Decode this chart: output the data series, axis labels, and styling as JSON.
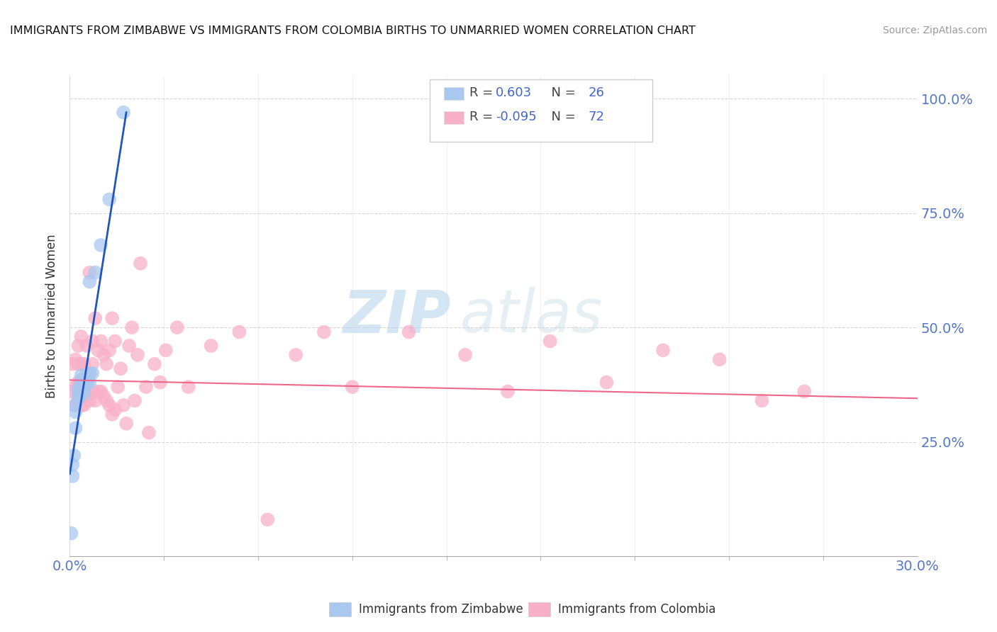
{
  "title": "IMMIGRANTS FROM ZIMBABWE VS IMMIGRANTS FROM COLOMBIA BIRTHS TO UNMARRIED WOMEN CORRELATION CHART",
  "source": "Source: ZipAtlas.com",
  "ylabel": "Births to Unmarried Women",
  "legend_blue_label": "R =  0.603   N = 26",
  "legend_pink_label": "R = -0.095   N = 72",
  "watermark_zip": "ZIP",
  "watermark_atlas": "atlas",
  "blue_color": "#a8c8f0",
  "pink_color": "#f8b0c8",
  "trend_blue": "#2255bb",
  "trend_pink": "#ee6688",
  "blue_scatter_x": [
    0.0005,
    0.001,
    0.001,
    0.0015,
    0.002,
    0.002,
    0.002,
    0.003,
    0.003,
    0.003,
    0.004,
    0.004,
    0.004,
    0.005,
    0.005,
    0.005,
    0.006,
    0.006,
    0.007,
    0.007,
    0.007,
    0.008,
    0.009,
    0.011,
    0.014,
    0.019
  ],
  "blue_scatter_y": [
    0.05,
    0.175,
    0.2,
    0.22,
    0.28,
    0.315,
    0.33,
    0.345,
    0.355,
    0.365,
    0.375,
    0.385,
    0.395,
    0.355,
    0.365,
    0.375,
    0.38,
    0.39,
    0.38,
    0.4,
    0.6,
    0.4,
    0.62,
    0.68,
    0.78,
    0.97
  ],
  "pink_scatter_x": [
    0.001,
    0.001,
    0.002,
    0.002,
    0.002,
    0.003,
    0.003,
    0.003,
    0.003,
    0.004,
    0.004,
    0.004,
    0.004,
    0.005,
    0.005,
    0.005,
    0.006,
    0.006,
    0.006,
    0.007,
    0.007,
    0.007,
    0.008,
    0.008,
    0.008,
    0.009,
    0.009,
    0.01,
    0.01,
    0.011,
    0.011,
    0.012,
    0.012,
    0.013,
    0.013,
    0.014,
    0.014,
    0.015,
    0.015,
    0.016,
    0.016,
    0.017,
    0.018,
    0.019,
    0.02,
    0.021,
    0.022,
    0.023,
    0.024,
    0.025,
    0.027,
    0.028,
    0.03,
    0.032,
    0.034,
    0.038,
    0.042,
    0.05,
    0.06,
    0.07,
    0.08,
    0.09,
    0.1,
    0.12,
    0.14,
    0.155,
    0.17,
    0.19,
    0.21,
    0.23,
    0.245,
    0.26
  ],
  "pink_scatter_y": [
    0.36,
    0.42,
    0.33,
    0.37,
    0.43,
    0.34,
    0.38,
    0.42,
    0.46,
    0.33,
    0.37,
    0.42,
    0.48,
    0.33,
    0.36,
    0.42,
    0.35,
    0.4,
    0.46,
    0.34,
    0.4,
    0.62,
    0.36,
    0.42,
    0.47,
    0.34,
    0.52,
    0.36,
    0.45,
    0.36,
    0.47,
    0.35,
    0.44,
    0.34,
    0.42,
    0.33,
    0.45,
    0.31,
    0.52,
    0.32,
    0.47,
    0.37,
    0.41,
    0.33,
    0.29,
    0.46,
    0.5,
    0.34,
    0.44,
    0.64,
    0.37,
    0.27,
    0.42,
    0.38,
    0.45,
    0.5,
    0.37,
    0.46,
    0.49,
    0.08,
    0.44,
    0.49,
    0.37,
    0.49,
    0.44,
    0.36,
    0.47,
    0.38,
    0.45,
    0.43,
    0.34,
    0.36
  ],
  "blue_trend_x": [
    0.0,
    0.02
  ],
  "blue_trend_y": [
    0.18,
    0.97
  ],
  "pink_trend_x": [
    0.0,
    0.3
  ],
  "pink_trend_y": [
    0.385,
    0.345
  ],
  "xmin": 0.0,
  "xmax": 0.3,
  "ymin": 0.0,
  "ymax": 1.05,
  "ytick_positions": [
    0.25,
    0.5,
    0.75,
    1.0
  ],
  "ytick_labels": [
    "25.0%",
    "50.0%",
    "75.0%",
    "100.0%"
  ],
  "xtick_label_left": "0.0%",
  "xtick_label_right": "30.0%",
  "tick_color": "#5577cc",
  "background_color": "#ffffff",
  "grid_color": "#cccccc",
  "title_color": "#111111",
  "source_color": "#999999",
  "ylabel_color": "#333333"
}
